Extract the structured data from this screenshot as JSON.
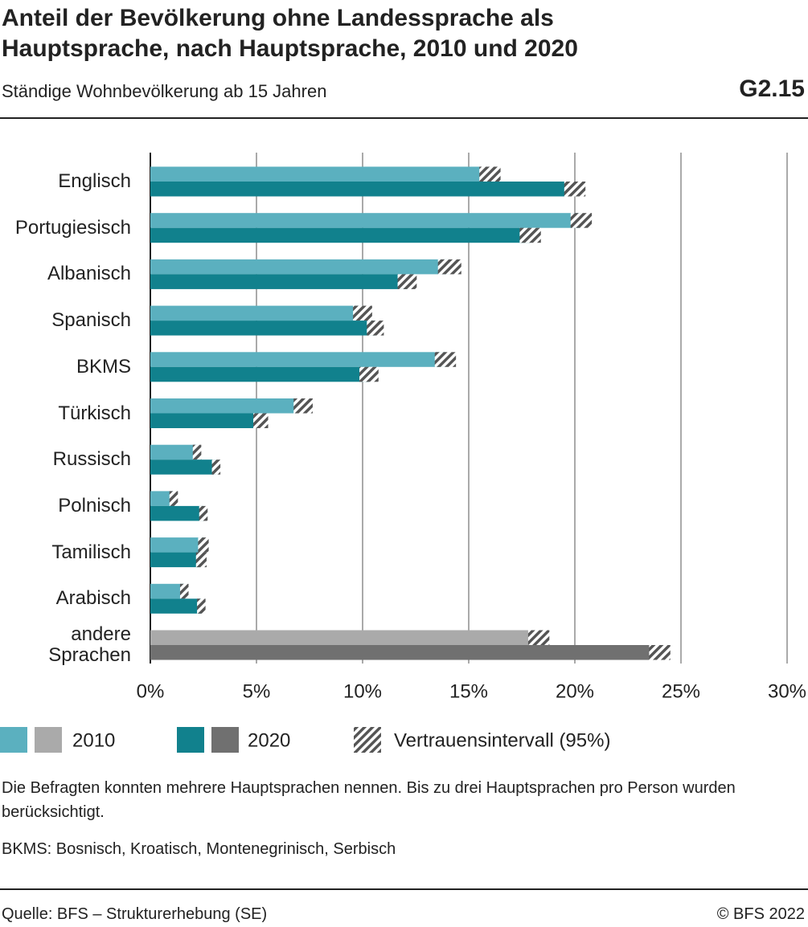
{
  "header": {
    "title": "Anteil der Bevölkerung ohne Landessprache als Hauptsprache, nach Hauptsprache, 2010 und 2020",
    "subtitle": "Ständige Wohnbevölkerung ab 15 Jahren",
    "chart_id": "G2.15"
  },
  "chart_data": {
    "type": "bar",
    "orientation": "horizontal",
    "categories": [
      "Englisch",
      "Portugiesisch",
      "Albanisch",
      "Spanisch",
      "BKMS",
      "Türkisch",
      "Russisch",
      "Polnisch",
      "Tamilisch",
      "Arabisch",
      "andere Sprachen"
    ],
    "series": [
      {
        "name": "2010",
        "color": "#5bb0bf",
        "colors": [
          "#5bb0bf",
          "#5bb0bf",
          "#5bb0bf",
          "#5bb0bf",
          "#5bb0bf",
          "#5bb0bf",
          "#5bb0bf",
          "#5bb0bf",
          "#5bb0bf",
          "#5bb0bf",
          "#aaaaaa"
        ],
        "values": [
          16.0,
          20.3,
          14.1,
          10.0,
          13.9,
          7.2,
          2.2,
          1.1,
          2.5,
          1.6,
          18.3
        ],
        "errors": [
          0.5,
          0.5,
          0.55,
          0.45,
          0.5,
          0.45,
          0.2,
          0.2,
          0.25,
          0.2,
          0.5
        ]
      },
      {
        "name": "2020",
        "color": "#11818d",
        "colors": [
          "#11818d",
          "#11818d",
          "#11818d",
          "#11818d",
          "#11818d",
          "#11818d",
          "#11818d",
          "#11818d",
          "#11818d",
          "#11818d",
          "#707070"
        ],
        "values": [
          20.0,
          17.9,
          12.1,
          10.6,
          10.3,
          5.2,
          3.1,
          2.5,
          2.4,
          2.4,
          24.0
        ],
        "errors": [
          0.5,
          0.5,
          0.45,
          0.4,
          0.45,
          0.35,
          0.2,
          0.2,
          0.25,
          0.2,
          0.5
        ]
      }
    ],
    "error_label": "Vertrauensintervall (95%)",
    "xlim": [
      0,
      30
    ],
    "xticks": [
      {
        "value": 0,
        "label": "0%"
      },
      {
        "value": 5,
        "label": "5%"
      },
      {
        "value": 10,
        "label": "10%"
      },
      {
        "value": 15,
        "label": "15%"
      },
      {
        "value": 20,
        "label": "20%"
      },
      {
        "value": 25,
        "label": "25%"
      },
      {
        "value": 30,
        "label": "30%"
      }
    ],
    "grid": true
  },
  "notes": [
    "Die Befragten konnten mehrere Hauptsprachen nennen. Bis zu drei Hauptsprachen pro Person wurden berücksichtigt.",
    "BKMS: Bosnisch, Kroatisch, Montenegrinisch, Serbisch"
  ],
  "footer": {
    "source": "Quelle: BFS – Strukturerhebung (SE)",
    "copyright": "© BFS 2022"
  }
}
